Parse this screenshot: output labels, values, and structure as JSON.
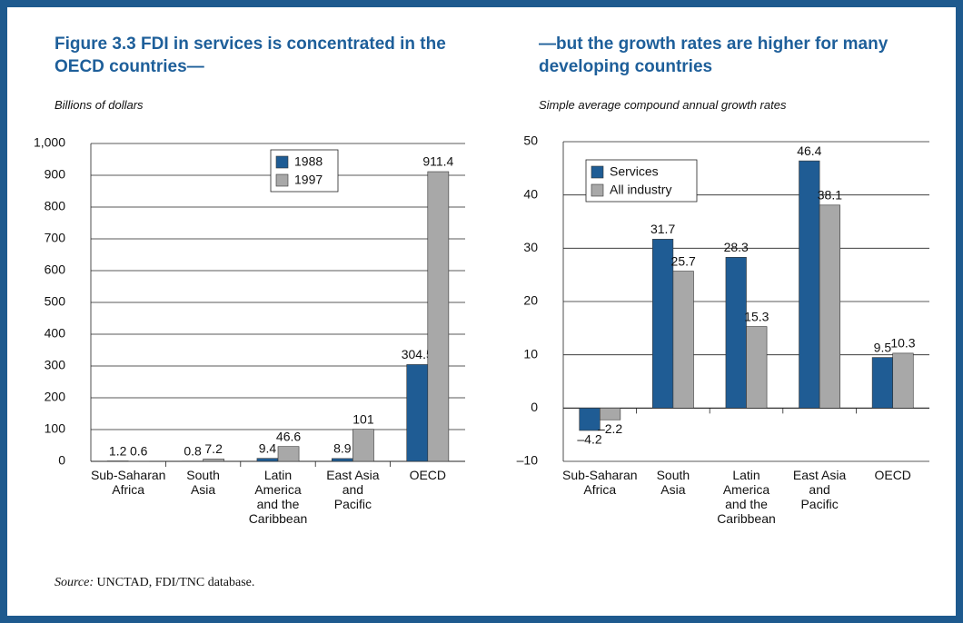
{
  "chart_data": [
    {
      "type": "bar",
      "title": "Figure 3.3  FDI in services is concentrated in the OECD countries—",
      "subtitle": "Billions of dollars",
      "categories": [
        "Sub-Saharan Africa",
        "South Asia",
        "Latin America and the Caribbean",
        "East Asia and Pacific",
        "OECD"
      ],
      "series": [
        {
          "name": "1988",
          "color": "#1f5c94",
          "values": [
            1.2,
            0.8,
            9.4,
            8.9,
            304.5
          ]
        },
        {
          "name": "1997",
          "color": "#a8a8a8",
          "values": [
            0.6,
            7.2,
            46.6,
            101,
            911.4
          ]
        }
      ],
      "ylim": [
        0,
        1000
      ],
      "yticks": [
        0,
        100,
        200,
        300,
        400,
        500,
        600,
        700,
        800,
        900,
        {
          "value": 1000,
          "label": "1,000"
        }
      ],
      "grid": true,
      "legend": "top"
    },
    {
      "type": "bar",
      "title": "—but the growth rates are higher for many developing countries",
      "subtitle": "Simple average compound annual growth rates",
      "categories": [
        "Sub-Saharan Africa",
        "South Asia",
        "Latin America and the Caribbean",
        "East Asia and Pacific",
        "OECD"
      ],
      "series": [
        {
          "name": "Services",
          "color": "#1f5c94",
          "values": [
            -4.2,
            31.7,
            28.3,
            46.4,
            9.5
          ],
          "value_labels": [
            "–4.2",
            "31.7",
            "28.3",
            "46.4",
            "9.5"
          ]
        },
        {
          "name": "All industry",
          "color": "#a8a8a8",
          "values": [
            -2.2,
            25.7,
            15.3,
            38.1,
            10.3
          ],
          "value_labels": [
            "–2.2",
            "25.7",
            "15.3",
            "38.1",
            "10.3"
          ]
        }
      ],
      "ylim": [
        -10,
        50
      ],
      "yticks": [
        {
          "value": -10,
          "label": "–10"
        },
        0,
        10,
        20,
        30,
        40,
        50
      ],
      "grid": true,
      "legend": "top-left"
    }
  ],
  "source": {
    "label": "Source:",
    "text": "UNCTAD, FDI/TNC database."
  }
}
